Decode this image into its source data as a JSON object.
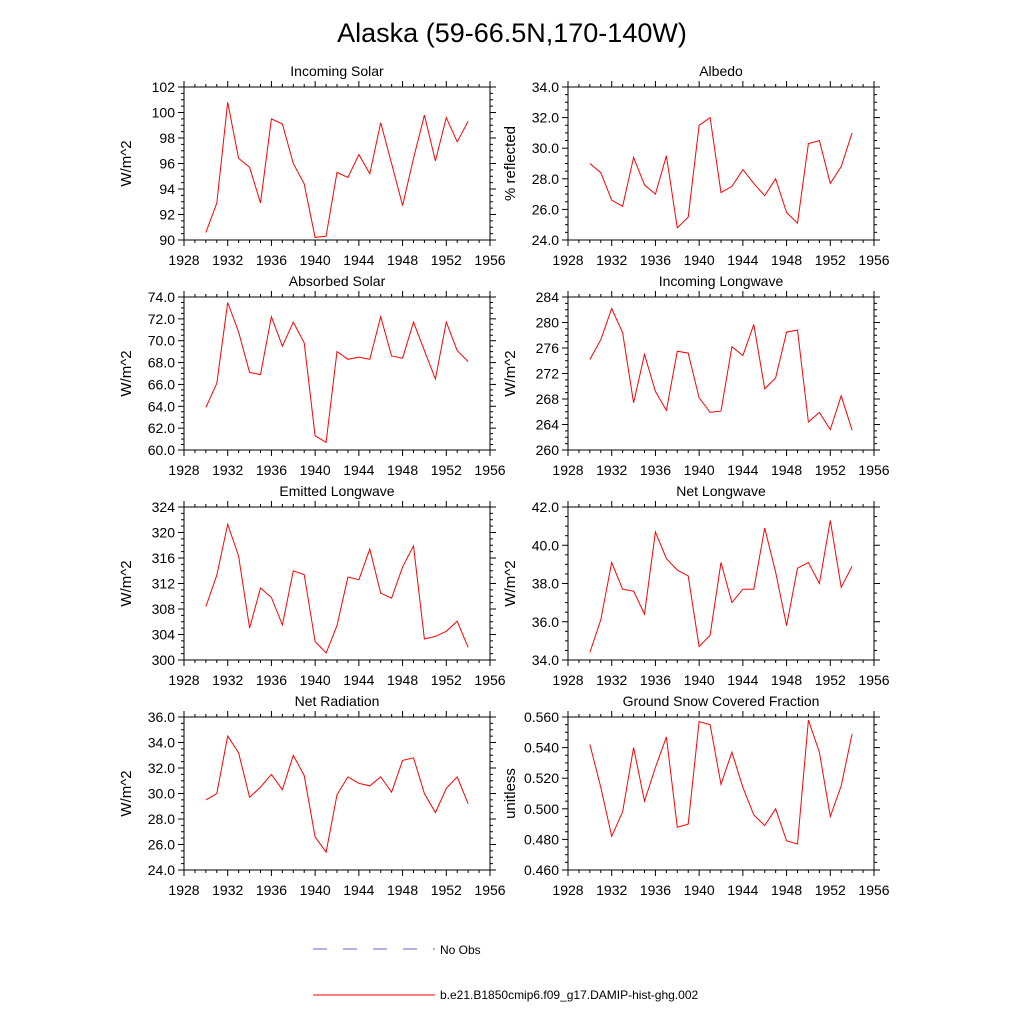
{
  "figure": {
    "title": "Alaska (59-66.5N,170-140W)",
    "line_color": "#ff0000",
    "obs_color": "#6666cc"
  },
  "legend": {
    "obs_label": "No Obs",
    "model_label": "b.e21.B1850cmip6.f09_g17.DAMIP-hist-ghg.002"
  },
  "chart_data": [
    {
      "type": "line",
      "title": "Incoming Solar",
      "ylabel": "W/m^2",
      "xlim": [
        1928,
        1956
      ],
      "ylim": [
        90,
        102
      ],
      "xticks": [
        1928,
        1932,
        1936,
        1940,
        1944,
        1948,
        1952,
        1956
      ],
      "xticklabels": [
        "1928",
        "1932",
        "1936",
        "1940",
        "1944",
        "1948",
        "1952",
        "1956"
      ],
      "yticks": [
        90,
        92,
        94,
        96,
        98,
        100,
        102
      ],
      "yticklabels": [
        "90",
        "92",
        "94",
        "96",
        "98",
        "100",
        "102"
      ],
      "x": [
        1930,
        1931,
        1932,
        1933,
        1934,
        1935,
        1936,
        1937,
        1938,
        1939,
        1940,
        1941,
        1942,
        1943,
        1944,
        1945,
        1946,
        1947,
        1948,
        1949,
        1950,
        1951,
        1952,
        1953,
        1954
      ],
      "series": [
        {
          "values": [
            90.6,
            92.9,
            100.8,
            96.4,
            95.7,
            92.9,
            99.5,
            99.1,
            96.0,
            94.4,
            90.2,
            90.3,
            95.3,
            94.9,
            96.7,
            95.2,
            99.2,
            96.0,
            92.7,
            96.4,
            99.8,
            96.2,
            99.6,
            97.7,
            99.3
          ]
        }
      ]
    },
    {
      "type": "line",
      "title": "Albedo",
      "ylabel": "% reflected",
      "xlim": [
        1928,
        1956
      ],
      "ylim": [
        24,
        34
      ],
      "xticks": [
        1928,
        1932,
        1936,
        1940,
        1944,
        1948,
        1952,
        1956
      ],
      "xticklabels": [
        "1928",
        "1932",
        "1936",
        "1940",
        "1944",
        "1948",
        "1952",
        "1956"
      ],
      "yticks": [
        24,
        26,
        28,
        30,
        32,
        34
      ],
      "yticklabels": [
        "24.0",
        "26.0",
        "28.0",
        "30.0",
        "32.0",
        "34.0"
      ],
      "x": [
        1930,
        1931,
        1932,
        1933,
        1934,
        1935,
        1936,
        1937,
        1938,
        1939,
        1940,
        1941,
        1942,
        1943,
        1944,
        1945,
        1946,
        1947,
        1948,
        1949,
        1950,
        1951,
        1952,
        1953,
        1954
      ],
      "series": [
        {
          "values": [
            29.0,
            28.4,
            26.6,
            26.2,
            29.4,
            27.6,
            27.0,
            29.5,
            24.8,
            25.5,
            31.5,
            32.0,
            27.1,
            27.5,
            28.6,
            27.7,
            26.9,
            28.0,
            25.8,
            25.1,
            30.3,
            30.5,
            27.7,
            28.8,
            31.0
          ]
        }
      ]
    },
    {
      "type": "line",
      "title": "Absorbed Solar",
      "ylabel": "W/m^2",
      "xlim": [
        1928,
        1956
      ],
      "ylim": [
        60,
        74
      ],
      "xticks": [
        1928,
        1932,
        1936,
        1940,
        1944,
        1948,
        1952,
        1956
      ],
      "xticklabels": [
        "1928",
        "1932",
        "1936",
        "1940",
        "1944",
        "1948",
        "1952",
        "1956"
      ],
      "yticks": [
        60,
        62,
        64,
        66,
        68,
        70,
        72,
        74
      ],
      "yticklabels": [
        "60.0",
        "62.0",
        "64.0",
        "66.0",
        "68.0",
        "70.0",
        "72.0",
        "74.0"
      ],
      "x": [
        1930,
        1931,
        1932,
        1933,
        1934,
        1935,
        1936,
        1937,
        1938,
        1939,
        1940,
        1941,
        1942,
        1943,
        1944,
        1945,
        1946,
        1947,
        1948,
        1949,
        1950,
        1951,
        1952,
        1953,
        1954
      ],
      "series": [
        {
          "values": [
            63.9,
            66.1,
            73.5,
            70.8,
            67.1,
            66.9,
            72.2,
            69.5,
            71.7,
            69.8,
            61.3,
            60.7,
            69.0,
            68.3,
            68.5,
            68.3,
            72.2,
            68.6,
            68.4,
            71.7,
            69.1,
            66.5,
            71.7,
            69.1,
            68.1
          ]
        }
      ]
    },
    {
      "type": "line",
      "title": "Incoming Longwave",
      "ylabel": "W/m^2",
      "xlim": [
        1928,
        1956
      ],
      "ylim": [
        260,
        284
      ],
      "xticks": [
        1928,
        1932,
        1936,
        1940,
        1944,
        1948,
        1952,
        1956
      ],
      "xticklabels": [
        "1928",
        "1932",
        "1936",
        "1940",
        "1944",
        "1948",
        "1952",
        "1956"
      ],
      "yticks": [
        260,
        264,
        268,
        272,
        276,
        280,
        284
      ],
      "yticklabels": [
        "260",
        "264",
        "268",
        "272",
        "276",
        "280",
        "284"
      ],
      "x": [
        1930,
        1931,
        1932,
        1933,
        1934,
        1935,
        1936,
        1937,
        1938,
        1939,
        1940,
        1941,
        1942,
        1943,
        1944,
        1945,
        1946,
        1947,
        1948,
        1949,
        1950,
        1951,
        1952,
        1953,
        1954
      ],
      "series": [
        {
          "values": [
            274.2,
            277.3,
            282.2,
            278.4,
            267.4,
            275.0,
            269.2,
            266.2,
            275.5,
            275.2,
            268.2,
            265.9,
            266.1,
            276.2,
            274.8,
            279.7,
            269.6,
            271.3,
            278.5,
            278.8,
            264.4,
            265.9,
            263.2,
            268.5,
            263.1
          ]
        }
      ]
    },
    {
      "type": "line",
      "title": "Emitted Longwave",
      "ylabel": "W/m^2",
      "xlim": [
        1928,
        1956
      ],
      "ylim": [
        300,
        324
      ],
      "xticks": [
        1928,
        1932,
        1936,
        1940,
        1944,
        1948,
        1952,
        1956
      ],
      "xticklabels": [
        "1928",
        "1932",
        "1936",
        "1940",
        "1944",
        "1948",
        "1952",
        "1956"
      ],
      "yticks": [
        300,
        304,
        308,
        312,
        316,
        320,
        324
      ],
      "yticklabels": [
        "300",
        "304",
        "308",
        "312",
        "316",
        "320",
        "324"
      ],
      "x": [
        1930,
        1931,
        1932,
        1933,
        1934,
        1935,
        1936,
        1937,
        1938,
        1939,
        1940,
        1941,
        1942,
        1943,
        1944,
        1945,
        1946,
        1947,
        1948,
        1949,
        1950,
        1951,
        1952,
        1953,
        1954
      ],
      "series": [
        {
          "values": [
            308.4,
            313.3,
            321.3,
            316.3,
            305.0,
            311.3,
            309.8,
            305.5,
            314.0,
            313.4,
            302.9,
            301.1,
            305.4,
            313.0,
            312.6,
            317.4,
            310.5,
            309.7,
            314.6,
            317.9,
            303.3,
            303.7,
            304.5,
            306.1,
            302.0
          ]
        }
      ]
    },
    {
      "type": "line",
      "title": "Net Longwave",
      "ylabel": "W/m^2",
      "xlim": [
        1928,
        1956
      ],
      "ylim": [
        34,
        42
      ],
      "xticks": [
        1928,
        1932,
        1936,
        1940,
        1944,
        1948,
        1952,
        1956
      ],
      "xticklabels": [
        "1928",
        "1932",
        "1936",
        "1940",
        "1944",
        "1948",
        "1952",
        "1956"
      ],
      "yticks": [
        34,
        36,
        38,
        40,
        42
      ],
      "yticklabels": [
        "34.0",
        "36.0",
        "38.0",
        "40.0",
        "42.0"
      ],
      "x": [
        1930,
        1931,
        1932,
        1933,
        1934,
        1935,
        1936,
        1937,
        1938,
        1939,
        1940,
        1941,
        1942,
        1943,
        1944,
        1945,
        1946,
        1947,
        1948,
        1949,
        1950,
        1951,
        1952,
        1953,
        1954
      ],
      "series": [
        {
          "values": [
            34.4,
            36.1,
            39.1,
            37.7,
            37.6,
            36.4,
            40.7,
            39.3,
            38.7,
            38.4,
            34.7,
            35.3,
            39.1,
            37.0,
            37.7,
            37.7,
            40.9,
            38.6,
            35.8,
            38.8,
            39.1,
            38.0,
            41.3,
            37.8,
            38.9
          ]
        }
      ]
    },
    {
      "type": "line",
      "title": "Net Radiation",
      "ylabel": "W/m^2",
      "xlim": [
        1928,
        1956
      ],
      "ylim": [
        24,
        36
      ],
      "xticks": [
        1928,
        1932,
        1936,
        1940,
        1944,
        1948,
        1952,
        1956
      ],
      "xticklabels": [
        "1928",
        "1932",
        "1936",
        "1940",
        "1944",
        "1948",
        "1952",
        "1956"
      ],
      "yticks": [
        24,
        26,
        28,
        30,
        32,
        34,
        36
      ],
      "yticklabels": [
        "24.0",
        "26.0",
        "28.0",
        "30.0",
        "32.0",
        "34.0",
        "36.0"
      ],
      "x": [
        1930,
        1931,
        1932,
        1933,
        1934,
        1935,
        1936,
        1937,
        1938,
        1939,
        1940,
        1941,
        1942,
        1943,
        1944,
        1945,
        1946,
        1947,
        1948,
        1949,
        1950,
        1951,
        1952,
        1953,
        1954
      ],
      "series": [
        {
          "values": [
            29.5,
            30.0,
            34.5,
            33.2,
            29.7,
            30.5,
            31.5,
            30.3,
            33.0,
            31.4,
            26.6,
            25.4,
            29.9,
            31.3,
            30.8,
            30.6,
            31.3,
            30.1,
            32.6,
            32.8,
            30.0,
            28.5,
            30.4,
            31.3,
            29.2
          ]
        }
      ]
    },
    {
      "type": "line",
      "title": "Ground Snow Covered Fraction",
      "ylabel": "unitless",
      "xlim": [
        1928,
        1956
      ],
      "ylim": [
        0.46,
        0.56
      ],
      "xticks": [
        1928,
        1932,
        1936,
        1940,
        1944,
        1948,
        1952,
        1956
      ],
      "xticklabels": [
        "1928",
        "1932",
        "1936",
        "1940",
        "1944",
        "1948",
        "1952",
        "1956"
      ],
      "yticks": [
        0.46,
        0.48,
        0.5,
        0.52,
        0.54,
        0.56
      ],
      "yticklabels": [
        "0.460",
        "0.480",
        "0.500",
        "0.520",
        "0.540",
        "0.560"
      ],
      "x": [
        1930,
        1931,
        1932,
        1933,
        1934,
        1935,
        1936,
        1937,
        1938,
        1939,
        1940,
        1941,
        1942,
        1943,
        1944,
        1945,
        1946,
        1947,
        1948,
        1949,
        1950,
        1951,
        1952,
        1953,
        1954
      ],
      "series": [
        {
          "values": [
            0.542,
            0.514,
            0.482,
            0.498,
            0.54,
            0.505,
            0.527,
            0.547,
            0.488,
            0.49,
            0.557,
            0.555,
            0.516,
            0.537,
            0.514,
            0.496,
            0.489,
            0.5,
            0.479,
            0.477,
            0.558,
            0.537,
            0.495,
            0.515,
            0.549
          ]
        }
      ]
    }
  ]
}
